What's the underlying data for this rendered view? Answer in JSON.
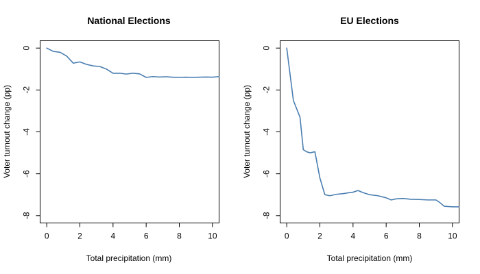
{
  "chart_data": [
    {
      "type": "line",
      "title": "National Elections",
      "xlabel": "Total precipitation (mm)",
      "ylabel": "Voter turnout change (pp)",
      "xlim": [
        -0.4,
        10.4
      ],
      "ylim": [
        -8.35,
        0.35
      ],
      "xticks": [
        0,
        2,
        4,
        6,
        8,
        10
      ],
      "yticks": [
        0,
        -2,
        -4,
        -6,
        -8
      ],
      "xtick_labels": [
        "0",
        "2",
        "4",
        "6",
        "8",
        "10"
      ],
      "ytick_labels": [
        "0",
        "-2",
        "-4",
        "-6",
        "-8"
      ],
      "grid": false,
      "color": "#4A7EB0",
      "x": [
        0,
        0.4,
        0.8,
        1.2,
        1.6,
        2.0,
        2.4,
        2.8,
        3.2,
        3.6,
        4.0,
        4.4,
        4.8,
        5.2,
        5.6,
        6.0,
        6.4,
        6.8,
        7.2,
        7.6,
        8.0,
        8.4,
        8.8,
        9.2,
        9.6,
        10.0,
        10.4
      ],
      "y": [
        0,
        -0.16,
        -0.2,
        -0.38,
        -0.72,
        -0.66,
        -0.78,
        -0.85,
        -0.88,
        -1.0,
        -1.2,
        -1.2,
        -1.24,
        -1.2,
        -1.23,
        -1.4,
        -1.36,
        -1.38,
        -1.37,
        -1.39,
        -1.4,
        -1.39,
        -1.4,
        -1.39,
        -1.38,
        -1.39,
        -1.36
      ]
    },
    {
      "type": "line",
      "title": "EU Elections",
      "xlabel": "Total precipitation (mm)",
      "ylabel": "Voter turnout change (pp)",
      "xlim": [
        -0.4,
        10.4
      ],
      "ylim": [
        -8.35,
        0.35
      ],
      "xticks": [
        0,
        2,
        4,
        6,
        8,
        10
      ],
      "yticks": [
        0,
        -2,
        -4,
        -6,
        -8
      ],
      "xtick_labels": [
        "0",
        "2",
        "4",
        "6",
        "8",
        "10"
      ],
      "ytick_labels": [
        "0",
        "-2",
        "-4",
        "-6",
        "-8"
      ],
      "grid": false,
      "color": "#4A7EB0",
      "x": [
        0,
        0.4,
        0.8,
        1.0,
        1.2,
        1.4,
        1.7,
        2.0,
        2.3,
        2.6,
        3.0,
        3.4,
        3.8,
        4.0,
        4.3,
        4.6,
        5.0,
        5.5,
        6.0,
        6.3,
        6.6,
        7.0,
        7.5,
        8.0,
        8.5,
        9.0,
        9.2,
        9.5,
        10.0,
        10.4
      ],
      "y": [
        0,
        -2.5,
        -3.3,
        -4.85,
        -4.95,
        -5.0,
        -4.95,
        -6.2,
        -7.0,
        -7.05,
        -6.98,
        -6.95,
        -6.9,
        -6.88,
        -6.8,
        -6.9,
        -7.0,
        -7.05,
        -7.15,
        -7.25,
        -7.2,
        -7.18,
        -7.22,
        -7.23,
        -7.25,
        -7.25,
        -7.35,
        -7.55,
        -7.58,
        -7.58
      ]
    }
  ]
}
